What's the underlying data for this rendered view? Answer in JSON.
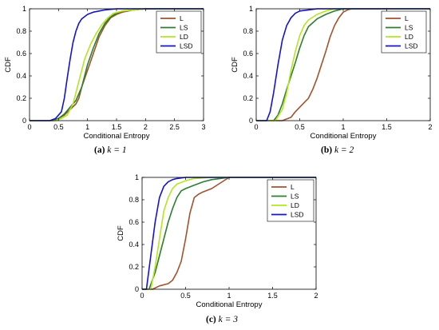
{
  "figure": {
    "panels": [
      {
        "caption_label": "(a)",
        "caption_math": "k = 1"
      },
      {
        "caption_label": "(b)",
        "caption_math": "k = 2"
      },
      {
        "caption_label": "(c)",
        "caption_math": "k = 3"
      }
    ]
  },
  "chart_data": [
    {
      "type": "line",
      "title": "",
      "xlabel": "Conditional Entropy",
      "ylabel": "CDF",
      "xlim": [
        0,
        3
      ],
      "ylim": [
        0,
        1
      ],
      "xticks": [
        "0",
        "0.5",
        "1",
        "1.5",
        "2",
        "2.5",
        "3"
      ],
      "xtick_values": [
        0,
        0.5,
        1,
        1.5,
        2,
        2.5,
        3
      ],
      "yticks": [
        "0",
        "0.2",
        "0.4",
        "0.6",
        "0.8",
        "1"
      ],
      "ytick_values": [
        0,
        0.2,
        0.4,
        0.6,
        0.8,
        1
      ],
      "grid": false,
      "legend": "top-right",
      "series": [
        {
          "name": "L",
          "color": "#A0522D",
          "x": [
            0,
            0.4,
            0.5,
            0.6,
            0.7,
            0.8,
            0.85,
            0.9,
            1.0,
            1.1,
            1.2,
            1.3,
            1.4,
            1.5,
            1.6,
            1.8,
            2.0,
            3.0
          ],
          "y": [
            0,
            0,
            0.02,
            0.05,
            0.1,
            0.15,
            0.2,
            0.3,
            0.45,
            0.6,
            0.75,
            0.85,
            0.92,
            0.95,
            0.97,
            0.99,
            1.0,
            1.0
          ]
        },
        {
          "name": "LS",
          "color": "#2E7D32",
          "x": [
            0,
            0.4,
            0.5,
            0.6,
            0.7,
            0.8,
            0.9,
            1.0,
            1.1,
            1.2,
            1.3,
            1.4,
            1.5,
            1.6,
            1.8,
            2.0,
            3.0
          ],
          "y": [
            0,
            0,
            0.02,
            0.06,
            0.12,
            0.18,
            0.3,
            0.5,
            0.65,
            0.78,
            0.87,
            0.93,
            0.96,
            0.98,
            0.99,
            1.0,
            1.0
          ]
        },
        {
          "name": "LD",
          "color": "#B5E61D",
          "x": [
            0,
            0.45,
            0.55,
            0.65,
            0.75,
            0.85,
            0.95,
            1.05,
            1.15,
            1.25,
            1.35,
            1.45,
            1.6,
            1.8,
            2.0,
            3.0
          ],
          "y": [
            0,
            0,
            0.02,
            0.05,
            0.15,
            0.35,
            0.55,
            0.68,
            0.78,
            0.86,
            0.92,
            0.96,
            0.98,
            0.99,
            1.0,
            1.0
          ]
        },
        {
          "name": "LSD",
          "color": "#1515C8",
          "x": [
            0,
            0.35,
            0.45,
            0.55,
            0.6,
            0.65,
            0.7,
            0.75,
            0.8,
            0.85,
            0.9,
            1.0,
            1.1,
            1.2,
            1.3,
            1.5,
            2.0,
            3.0
          ],
          "y": [
            0,
            0,
            0.02,
            0.08,
            0.2,
            0.38,
            0.55,
            0.7,
            0.8,
            0.87,
            0.91,
            0.95,
            0.97,
            0.98,
            0.99,
            1.0,
            1.0,
            1.0
          ]
        }
      ]
    },
    {
      "type": "line",
      "title": "",
      "xlabel": "Conditional Entropy",
      "ylabel": "CDF",
      "xlim": [
        0,
        2
      ],
      "ylim": [
        0,
        1
      ],
      "xticks": [
        "0",
        "0.5",
        "1",
        "1.5",
        "2"
      ],
      "xtick_values": [
        0,
        0.5,
        1,
        1.5,
        2
      ],
      "yticks": [
        "0",
        "0.2",
        "0.4",
        "0.6",
        "0.8",
        "1"
      ],
      "ytick_values": [
        0,
        0.2,
        0.4,
        0.6,
        0.8,
        1
      ],
      "grid": false,
      "legend": "top-right",
      "series": [
        {
          "name": "L",
          "color": "#A0522D",
          "x": [
            0,
            0.3,
            0.4,
            0.45,
            0.5,
            0.55,
            0.6,
            0.65,
            0.7,
            0.75,
            0.8,
            0.85,
            0.9,
            0.95,
            1.0,
            1.05,
            1.1,
            2.0
          ],
          "y": [
            0,
            0,
            0.03,
            0.08,
            0.12,
            0.16,
            0.2,
            0.28,
            0.38,
            0.5,
            0.62,
            0.75,
            0.85,
            0.92,
            0.97,
            0.99,
            1.0,
            1.0
          ]
        },
        {
          "name": "LS",
          "color": "#2E7D32",
          "x": [
            0,
            0.2,
            0.25,
            0.3,
            0.35,
            0.4,
            0.45,
            0.5,
            0.55,
            0.6,
            0.7,
            0.8,
            0.9,
            1.0,
            2.0
          ],
          "y": [
            0,
            0,
            0.05,
            0.15,
            0.28,
            0.4,
            0.52,
            0.65,
            0.76,
            0.84,
            0.91,
            0.95,
            0.98,
            1.0,
            1.0
          ]
        },
        {
          "name": "LD",
          "color": "#B5E61D",
          "x": [
            0,
            0.22,
            0.3,
            0.35,
            0.4,
            0.45,
            0.5,
            0.55,
            0.6,
            0.7,
            0.8,
            0.9,
            2.0
          ],
          "y": [
            0,
            0,
            0.1,
            0.25,
            0.45,
            0.62,
            0.76,
            0.85,
            0.9,
            0.95,
            0.98,
            1.0,
            1.0
          ]
        },
        {
          "name": "LSD",
          "color": "#1515C8",
          "x": [
            0,
            0.12,
            0.16,
            0.2,
            0.25,
            0.3,
            0.35,
            0.4,
            0.45,
            0.5,
            0.6,
            0.7,
            2.0
          ],
          "y": [
            0,
            0,
            0.08,
            0.25,
            0.5,
            0.72,
            0.85,
            0.92,
            0.96,
            0.98,
            0.99,
            1.0,
            1.0
          ]
        }
      ]
    },
    {
      "type": "line",
      "title": "",
      "xlabel": "Conditional Entropy",
      "ylabel": "CDF",
      "xlim": [
        0,
        2
      ],
      "ylim": [
        0,
        1
      ],
      "xticks": [
        "0",
        "0.5",
        "1",
        "1.5",
        "2"
      ],
      "xtick_values": [
        0,
        0.5,
        1,
        1.5,
        2
      ],
      "yticks": [
        "0",
        "0.2",
        "0.4",
        "0.6",
        "0.8",
        "1"
      ],
      "ytick_values": [
        0,
        0.2,
        0.4,
        0.6,
        0.8,
        1
      ],
      "grid": false,
      "legend": "top-right",
      "series": [
        {
          "name": "L",
          "color": "#A0522D",
          "x": [
            0,
            0.12,
            0.2,
            0.3,
            0.35,
            0.4,
            0.45,
            0.5,
            0.55,
            0.6,
            0.65,
            0.7,
            0.8,
            0.9,
            1.0,
            2.0
          ],
          "y": [
            0,
            0,
            0.03,
            0.05,
            0.08,
            0.15,
            0.25,
            0.45,
            0.68,
            0.82,
            0.85,
            0.87,
            0.9,
            0.95,
            1.0,
            1.0
          ]
        },
        {
          "name": "LS",
          "color": "#2E7D32",
          "x": [
            0,
            0.08,
            0.15,
            0.2,
            0.25,
            0.3,
            0.35,
            0.4,
            0.45,
            0.5,
            0.6,
            0.7,
            0.8,
            1.0,
            2.0
          ],
          "y": [
            0,
            0,
            0.15,
            0.3,
            0.45,
            0.6,
            0.72,
            0.82,
            0.88,
            0.9,
            0.93,
            0.96,
            0.98,
            1.0,
            1.0
          ]
        },
        {
          "name": "LD",
          "color": "#B5E61D",
          "x": [
            0,
            0.1,
            0.15,
            0.2,
            0.25,
            0.3,
            0.35,
            0.4,
            0.5,
            0.6,
            0.8,
            2.0
          ],
          "y": [
            0,
            0,
            0.2,
            0.45,
            0.7,
            0.82,
            0.9,
            0.94,
            0.97,
            0.99,
            1.0,
            1.0
          ]
        },
        {
          "name": "LSD",
          "color": "#1515C8",
          "x": [
            0,
            0.05,
            0.1,
            0.15,
            0.2,
            0.25,
            0.3,
            0.35,
            0.4,
            0.5,
            0.6,
            2.0
          ],
          "y": [
            0,
            0,
            0.3,
            0.6,
            0.82,
            0.92,
            0.96,
            0.98,
            0.99,
            1.0,
            1.0,
            1.0
          ]
        }
      ]
    }
  ]
}
